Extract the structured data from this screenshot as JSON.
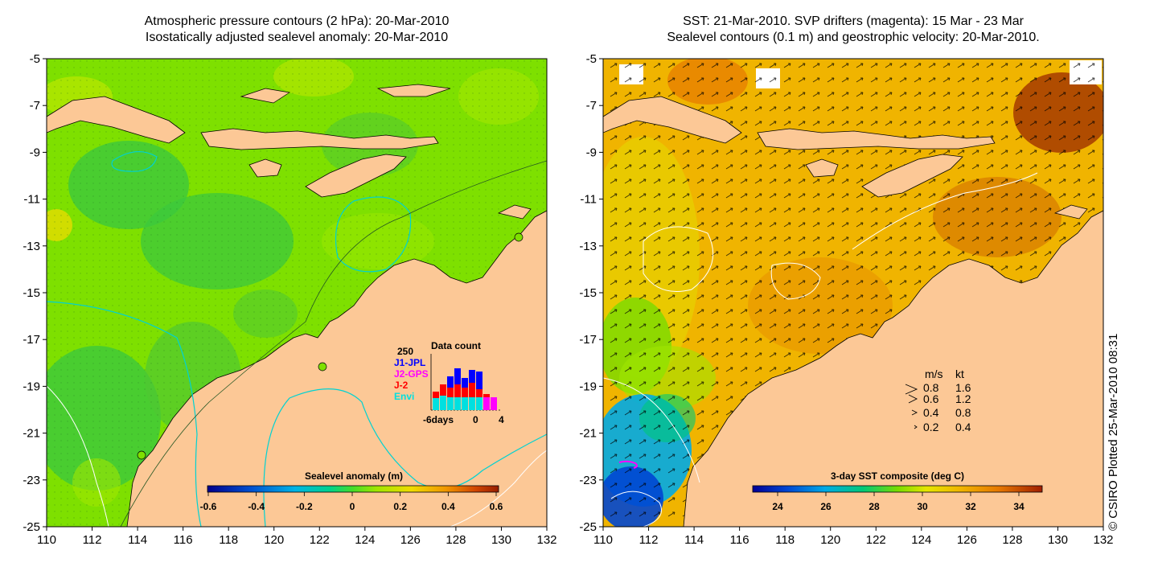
{
  "left_panel": {
    "title_line1": "Atmospheric pressure contours (2 hPa): 20-Mar-2010",
    "title_line2": "Isostatically adjusted sealevel anomaly: 20-Mar-2010",
    "colorbar": {
      "label": "Sealevel anomaly (m)",
      "ticks": [
        "-0.6",
        "-0.4",
        "-0.2",
        "0",
        "0.2",
        "0.4",
        "0.6"
      ]
    },
    "data_count": {
      "title": "Data count",
      "ymax_label": "250",
      "legend": [
        {
          "name": "J1-JPL",
          "color": "#0000ff"
        },
        {
          "name": "J2-GPS",
          "color": "#ff00ff"
        },
        {
          "name": "J-2",
          "color": "#ff0000"
        },
        {
          "name": "Envi",
          "color": "#00e0e0"
        }
      ],
      "x_labels": [
        "-6days",
        "0",
        "4"
      ]
    }
  },
  "right_panel": {
    "title_line1": "SST: 21-Mar-2010. SVP drifters (magenta): 15 Mar - 23 Mar",
    "title_line2": "Sealevel contours (0.1 m) and geostrophic velocity: 20-Mar-2010.",
    "colorbar": {
      "label": "3-day SST composite (deg C)",
      "ticks": [
        "24",
        "26",
        "28",
        "30",
        "32",
        "34"
      ]
    },
    "velocity_legend": {
      "header_ms": "m/s",
      "header_kt": "kt",
      "rows": [
        {
          "ms": "0.8",
          "kt": "1.6"
        },
        {
          "ms": "0.6",
          "kt": "1.2"
        },
        {
          "ms": "0.4",
          "kt": "0.8"
        },
        {
          "ms": "0.2",
          "kt": "0.4"
        }
      ]
    }
  },
  "axes": {
    "x_ticks": [
      "110",
      "112",
      "114",
      "116",
      "118",
      "120",
      "122",
      "124",
      "126",
      "128",
      "130",
      "132"
    ],
    "y_ticks": [
      "-5",
      "-7",
      "-9",
      "-11",
      "-13",
      "-15",
      "-17",
      "-19",
      "-21",
      "-23",
      "-25"
    ]
  },
  "credit": "© CSIRO Plotted 25-Mar-2010 08:31",
  "colors": {
    "land": "#fcc896",
    "ocean_left": "#7ee000",
    "ocean_right": "#f0b400"
  }
}
